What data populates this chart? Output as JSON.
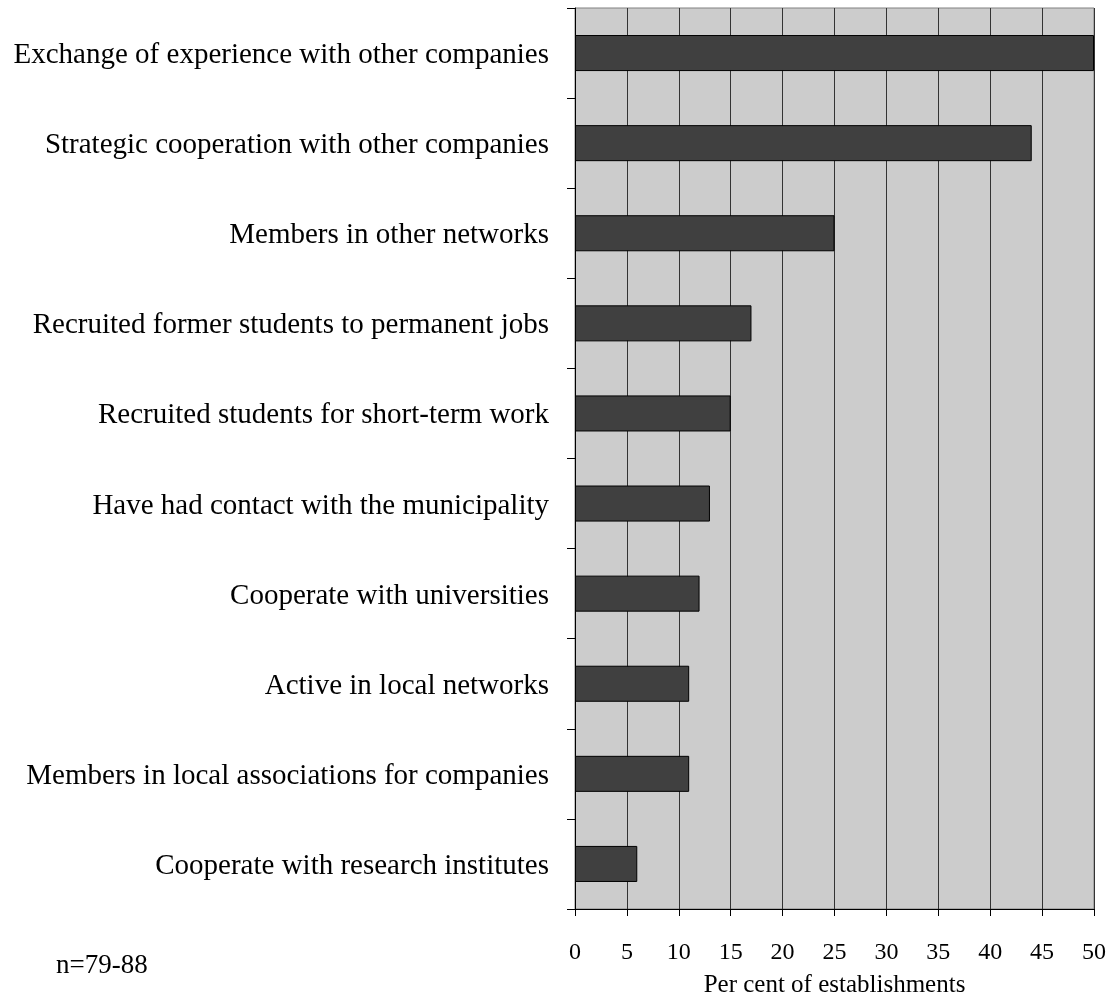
{
  "chart_data": {
    "type": "bar",
    "orientation": "horizontal",
    "categories": [
      "Exchange of experience with other companies",
      "Strategic cooperation with other companies",
      "Members in other networks",
      "Recruited former students to permanent jobs",
      "Recruited students for short-term work",
      "Have had contact with the municipality",
      "Cooperate with universities",
      "Active in local networks",
      "Members in local associations for companies",
      "Cooperate with research institutes"
    ],
    "values": [
      50,
      44,
      25,
      17,
      15,
      13,
      12,
      11,
      11,
      6
    ],
    "color": "#404040",
    "xlim": [
      0,
      50
    ],
    "xticks": [
      0,
      5,
      10,
      15,
      20,
      25,
      30,
      35,
      40,
      45,
      50
    ],
    "xlabel": "Per cent of establishments",
    "grid": "x",
    "annotations": [
      "n=79-88"
    ]
  }
}
